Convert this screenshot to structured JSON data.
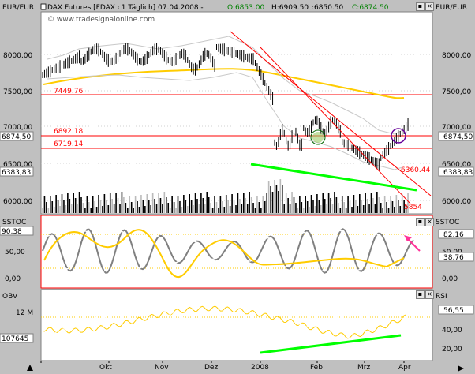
{
  "header": {
    "currency_left": "EUR/EUR",
    "currency_right": "EUR/EUR",
    "instrument": "DAX Futures [FDAX c1  Täglich] 07.04.2008 -",
    "open": "O:6853.00",
    "high": "H:6909.50",
    "low": "L:6850.50",
    "close": "C:6874.50",
    "watermark": "© www.tradesignalonline.com"
  },
  "price_panel": {
    "y_ticks": [
      "8000,00",
      "7500,00",
      "7000,00",
      "6500,00",
      "6000,00"
    ],
    "left_badges": [
      "6874,50",
      "6383,83"
    ],
    "right_badges": [
      "6874,50",
      "6383,83"
    ],
    "level_labels": [
      "7449.76",
      "6892.18",
      "6719.14"
    ],
    "right_labels": [
      "6360.44",
      "5854"
    ]
  },
  "stoch_panel": {
    "title_left": "SSTOC",
    "title_right": "SSTOC",
    "left_badges": [
      "90,38"
    ],
    "y_ticks": [
      "50,00",
      "0,00"
    ],
    "right_ticks": [
      "50,00",
      "0,00"
    ],
    "right_badges": [
      "82,16",
      "38,76"
    ]
  },
  "obv_panel": {
    "title_left": "OBV",
    "title_right": "RSI",
    "left_ticks": [
      "12 M"
    ],
    "left_badges": [
      "107645"
    ],
    "right_ticks": [
      "40,00",
      "20,00"
    ],
    "right_badges": [
      "56,55"
    ]
  },
  "x_axis": {
    "labels": [
      "Okt",
      "Nov",
      "Dez",
      "2008",
      "Feb",
      "Mrz",
      "Apr"
    ]
  },
  "colors": {
    "background": "#c0c0c0",
    "panel": "#ffffff",
    "ma": "#ffcc00",
    "level": "#ff0000",
    "trend": "#00ff00",
    "arrow": "#ff3399"
  },
  "icons": {
    "close": "close-icon",
    "menu": "menu-icon"
  }
}
